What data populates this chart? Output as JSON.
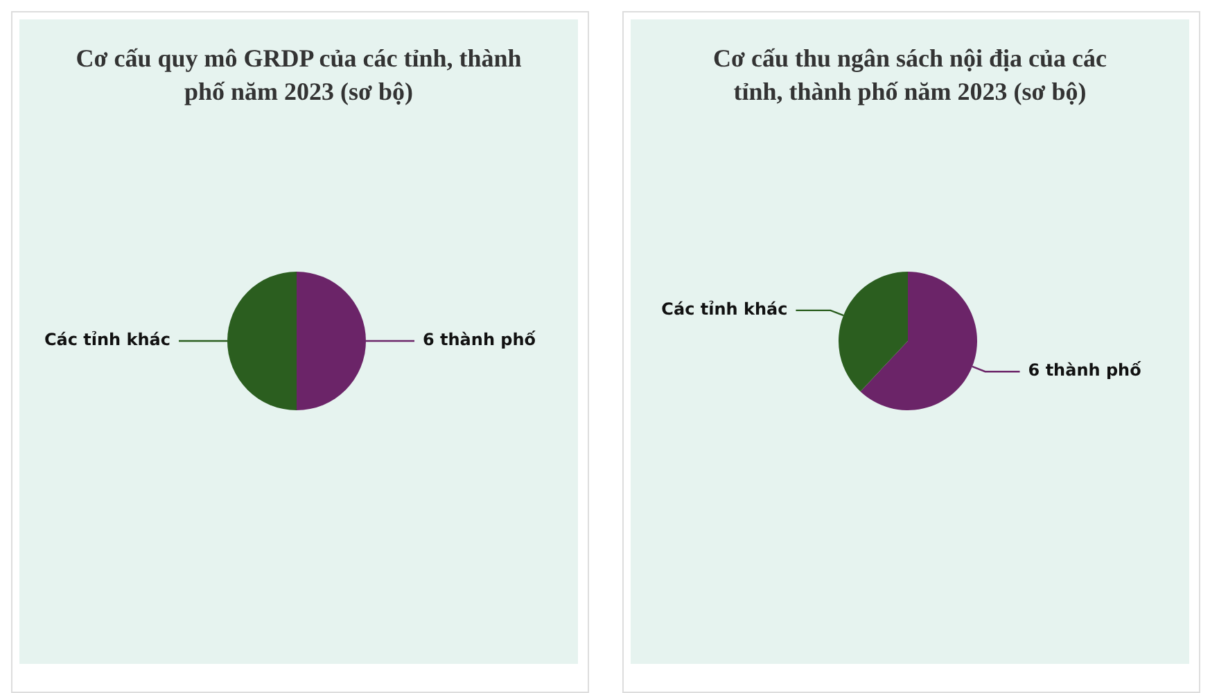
{
  "chart_data": [
    {
      "type": "pie",
      "title": "Cơ cấu quy mô GRDP của các tỉnh, thành phố năm 2023 (sơ bộ)",
      "categories": [
        "6 thành phố",
        "Các tỉnh khác"
      ],
      "values": [
        50,
        50
      ],
      "colors": [
        "#6b2468",
        "#2b5e1f"
      ]
    },
    {
      "type": "pie",
      "title": "Cơ cấu thu ngân sách nội địa của các tỉnh, thành phố năm 2023 (sơ bộ)",
      "categories": [
        "6 thành phố",
        "Các tỉnh khác"
      ],
      "values": [
        62,
        38
      ],
      "colors": [
        "#6b2468",
        "#2b5e1f"
      ]
    }
  ]
}
